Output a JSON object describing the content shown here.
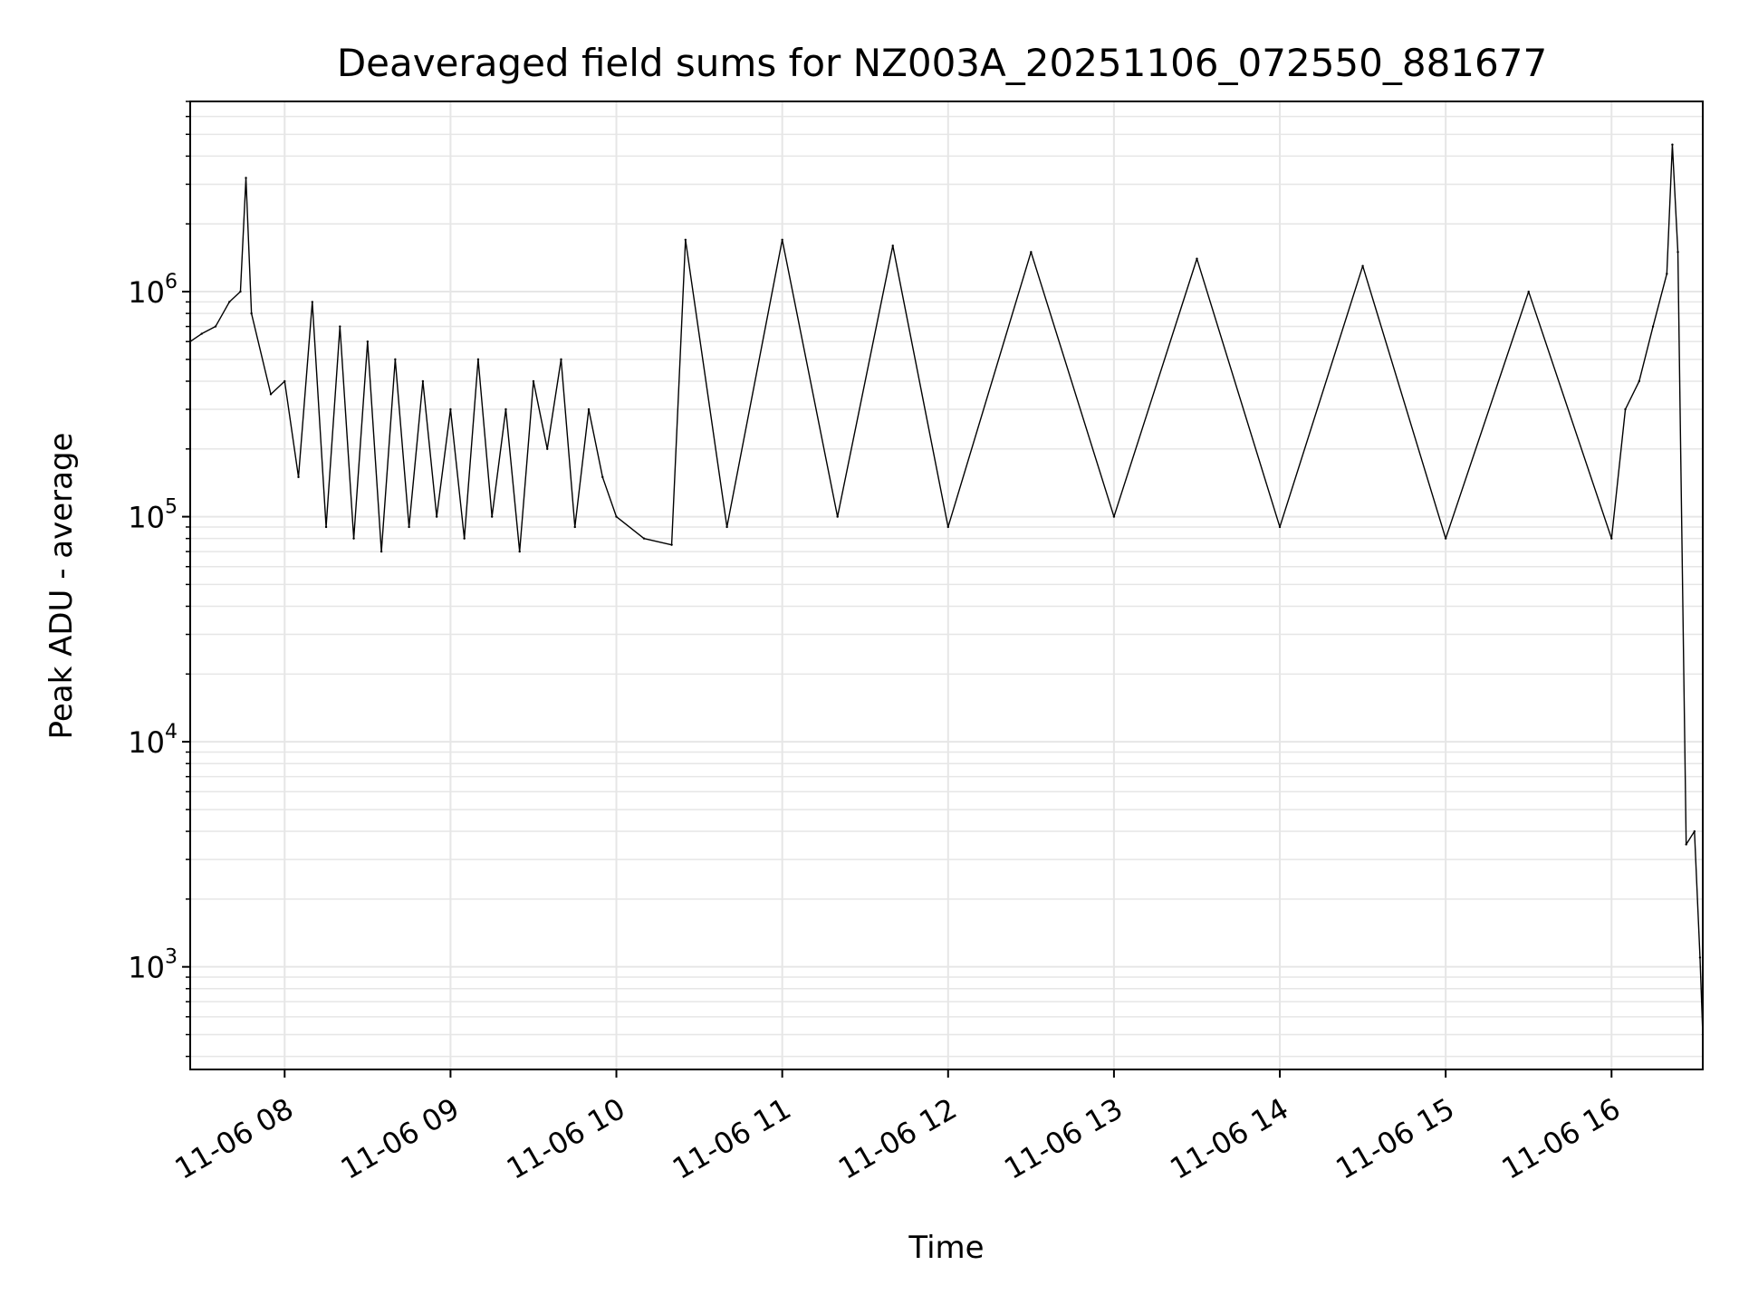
{
  "chart_data": {
    "type": "line",
    "title": "Deaveraged field sums for NZ003A_20251106_072550_881677",
    "xlabel": "Time",
    "ylabel": "Peak ADU - average",
    "yscale": "log",
    "ylim": [
      350,
      7000000
    ],
    "xlim": [
      "2025-11-06T07:25:50",
      "2025-11-06T16:33:00"
    ],
    "grid": true,
    "line_color": "#000000",
    "grid_color": "#e6e6e6",
    "x_ticks": [
      {
        "value": "2025-11-06T08:00:00",
        "label": "11-06 08"
      },
      {
        "value": "2025-11-06T09:00:00",
        "label": "11-06 09"
      },
      {
        "value": "2025-11-06T10:00:00",
        "label": "11-06 10"
      },
      {
        "value": "2025-11-06T11:00:00",
        "label": "11-06 11"
      },
      {
        "value": "2025-11-06T12:00:00",
        "label": "11-06 12"
      },
      {
        "value": "2025-11-06T13:00:00",
        "label": "11-06 13"
      },
      {
        "value": "2025-11-06T14:00:00",
        "label": "11-06 14"
      },
      {
        "value": "2025-11-06T15:00:00",
        "label": "11-06 15"
      },
      {
        "value": "2025-11-06T16:00:00",
        "label": "11-06 16"
      }
    ],
    "y_ticks": [
      {
        "value": 1000,
        "base": "10",
        "exp": "3"
      },
      {
        "value": 10000,
        "base": "10",
        "exp": "4"
      },
      {
        "value": 100000,
        "base": "10",
        "exp": "5"
      },
      {
        "value": 1000000,
        "base": "10",
        "exp": "6"
      }
    ],
    "series": [
      {
        "points": [
          [
            "2025-11-06T07:25:50",
            600000
          ],
          [
            "2025-11-06T07:30:00",
            650000
          ],
          [
            "2025-11-06T07:35:00",
            700000
          ],
          [
            "2025-11-06T07:40:00",
            900000
          ],
          [
            "2025-11-06T07:44:00",
            1000000
          ],
          [
            "2025-11-06T07:46:00",
            3200000
          ],
          [
            "2025-11-06T07:48:00",
            800000
          ],
          [
            "2025-11-06T07:55:00",
            350000
          ],
          [
            "2025-11-06T08:00:00",
            400000
          ],
          [
            "2025-11-06T08:05:00",
            150000
          ],
          [
            "2025-11-06T08:10:00",
            900000
          ],
          [
            "2025-11-06T08:15:00",
            90000
          ],
          [
            "2025-11-06T08:20:00",
            700000
          ],
          [
            "2025-11-06T08:25:00",
            80000
          ],
          [
            "2025-11-06T08:30:00",
            600000
          ],
          [
            "2025-11-06T08:35:00",
            70000
          ],
          [
            "2025-11-06T08:40:00",
            500000
          ],
          [
            "2025-11-06T08:45:00",
            90000
          ],
          [
            "2025-11-06T08:50:00",
            400000
          ],
          [
            "2025-11-06T08:55:00",
            100000
          ],
          [
            "2025-11-06T09:00:00",
            300000
          ],
          [
            "2025-11-06T09:05:00",
            80000
          ],
          [
            "2025-11-06T09:10:00",
            500000
          ],
          [
            "2025-11-06T09:15:00",
            100000
          ],
          [
            "2025-11-06T09:20:00",
            300000
          ],
          [
            "2025-11-06T09:25:00",
            70000
          ],
          [
            "2025-11-06T09:30:00",
            400000
          ],
          [
            "2025-11-06T09:35:00",
            200000
          ],
          [
            "2025-11-06T09:40:00",
            500000
          ],
          [
            "2025-11-06T09:45:00",
            90000
          ],
          [
            "2025-11-06T09:50:00",
            300000
          ],
          [
            "2025-11-06T09:55:00",
            150000
          ],
          [
            "2025-11-06T10:00:00",
            100000
          ],
          [
            "2025-11-06T10:10:00",
            80000
          ],
          [
            "2025-11-06T10:20:00",
            75000
          ],
          [
            "2025-11-06T10:25:00",
            1700000
          ],
          [
            "2025-11-06T10:40:00",
            90000
          ],
          [
            "2025-11-06T11:00:00",
            1700000
          ],
          [
            "2025-11-06T11:20:00",
            100000
          ],
          [
            "2025-11-06T11:40:00",
            1600000
          ],
          [
            "2025-11-06T12:00:00",
            90000
          ],
          [
            "2025-11-06T12:30:00",
            1500000
          ],
          [
            "2025-11-06T13:00:00",
            100000
          ],
          [
            "2025-11-06T13:30:00",
            1400000
          ],
          [
            "2025-11-06T14:00:00",
            90000
          ],
          [
            "2025-11-06T14:30:00",
            1300000
          ],
          [
            "2025-11-06T15:00:00",
            80000
          ],
          [
            "2025-11-06T15:30:00",
            1000000
          ],
          [
            "2025-11-06T16:00:00",
            80000
          ],
          [
            "2025-11-06T16:05:00",
            300000
          ],
          [
            "2025-11-06T16:10:00",
            400000
          ],
          [
            "2025-11-06T16:15:00",
            700000
          ],
          [
            "2025-11-06T16:20:00",
            1200000
          ],
          [
            "2025-11-06T16:22:00",
            4500000
          ],
          [
            "2025-11-06T16:24:00",
            1500000
          ],
          [
            "2025-11-06T16:27:00",
            3500
          ],
          [
            "2025-11-06T16:30:00",
            4000
          ],
          [
            "2025-11-06T16:32:00",
            1100
          ],
          [
            "2025-11-06T16:33:00",
            500
          ]
        ]
      }
    ]
  }
}
